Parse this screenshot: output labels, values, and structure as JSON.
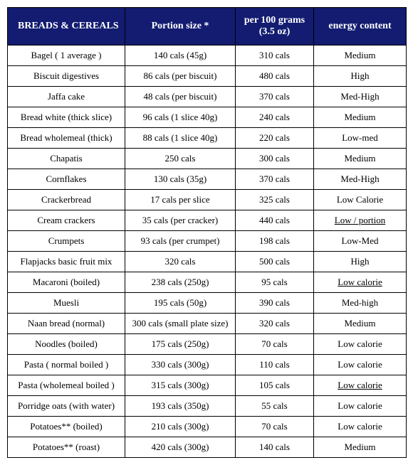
{
  "header_bg": "#131c71",
  "header_fg": "#ffffff",
  "columns": [
    {
      "label": "BREADS & CEREALS",
      "class": "col0"
    },
    {
      "label": "Portion size *",
      "class": "col1"
    },
    {
      "label": "per 100 grams (3.5 oz)",
      "class": "col2"
    },
    {
      "label": "energy content",
      "class": "col3"
    }
  ],
  "rows": [
    {
      "c0": "Bagel ( 1 average )",
      "c1": "140 cals (45g)",
      "c2": "310 cals",
      "c3": "Medium",
      "u3": false
    },
    {
      "c0": "Biscuit digestives",
      "c1": "86 cals (per biscuit)",
      "c2": "480 cals",
      "c3": "High",
      "u3": false
    },
    {
      "c0": "Jaffa cake",
      "c1": "48 cals (per biscuit)",
      "c2": "370 cals",
      "c3": "Med-High",
      "u3": false
    },
    {
      "c0": "Bread white (thick slice)",
      "c1": "96  cals (1 slice 40g)",
      "c2": "240 cals",
      "c3": "Medium",
      "u3": false
    },
    {
      "c0": "Bread wholemeal (thick)",
      "c1": "88  cals (1 slice 40g)",
      "c2": "220 cals",
      "c3": "Low-med",
      "u3": false
    },
    {
      "c0": "Chapatis",
      "c1": "250 cals",
      "c2": "300 cals",
      "c3": "Medium",
      "u3": false
    },
    {
      "c0": "Cornflakes",
      "c1": "130  cals (35g)",
      "c2": "370 cals",
      "c3": "Med-High",
      "u3": false
    },
    {
      "c0": "Crackerbread",
      "c1": "17 cals per slice",
      "c2": "325 cals",
      "c3": "Low Calorie",
      "u3": false
    },
    {
      "c0": "Cream crackers",
      "c1": "35 cals (per cracker)",
      "c2": "440 cals",
      "c3": "Low / portion",
      "u3": true
    },
    {
      "c0": "Crumpets",
      "c1": "93 cals (per crumpet)",
      "c2": "198 cals",
      "c3": "Low-Med",
      "u3": false
    },
    {
      "c0": "Flapjacks basic fruit mix",
      "c1": "320 cals",
      "c2": "500 cals",
      "c3": "High",
      "u3": false
    },
    {
      "c0": "Macaroni (boiled)",
      "c1": "238 cals (250g)",
      "c2": "95 cals",
      "c3": "Low calorie",
      "u3": true
    },
    {
      "c0": "Muesli",
      "c1": "195  cals (50g)",
      "c2": "390 cals",
      "c3": "Med-high",
      "u3": false
    },
    {
      "c0": "Naan bread (normal)",
      "c1": "300 cals (small plate size)",
      "c2": "320 cals",
      "c3": "Medium",
      "u3": false
    },
    {
      "c0": "Noodles (boiled)",
      "c1": "175 cals (250g)",
      "c2": "70 cals",
      "c3": "Low calorie",
      "u3": false
    },
    {
      "c0": "Pasta ( normal boiled )",
      "c1": "330 cals (300g)",
      "c2": "110 cals",
      "c3": "Low calorie",
      "u3": false
    },
    {
      "c0": "Pasta (wholemeal boiled )",
      "c1": "315 cals (300g)",
      "c2": "105 cals",
      "c3": "Low calorie",
      "u3": true
    },
    {
      "c0": "Porridge oats (with water)",
      "c1": "193 cals (350g)",
      "c2": "55 cals",
      "c3": "Low calorie",
      "u3": false
    },
    {
      "c0": "Potatoes** (boiled)",
      "c1": "210 cals (300g)",
      "c2": "70 cals",
      "c3": "Low calorie",
      "u3": false
    },
    {
      "c0": "Potatoes** (roast)",
      "c1": "420 cals (300g)",
      "c2": "140 cals",
      "c3": "Medium",
      "u3": false
    }
  ]
}
